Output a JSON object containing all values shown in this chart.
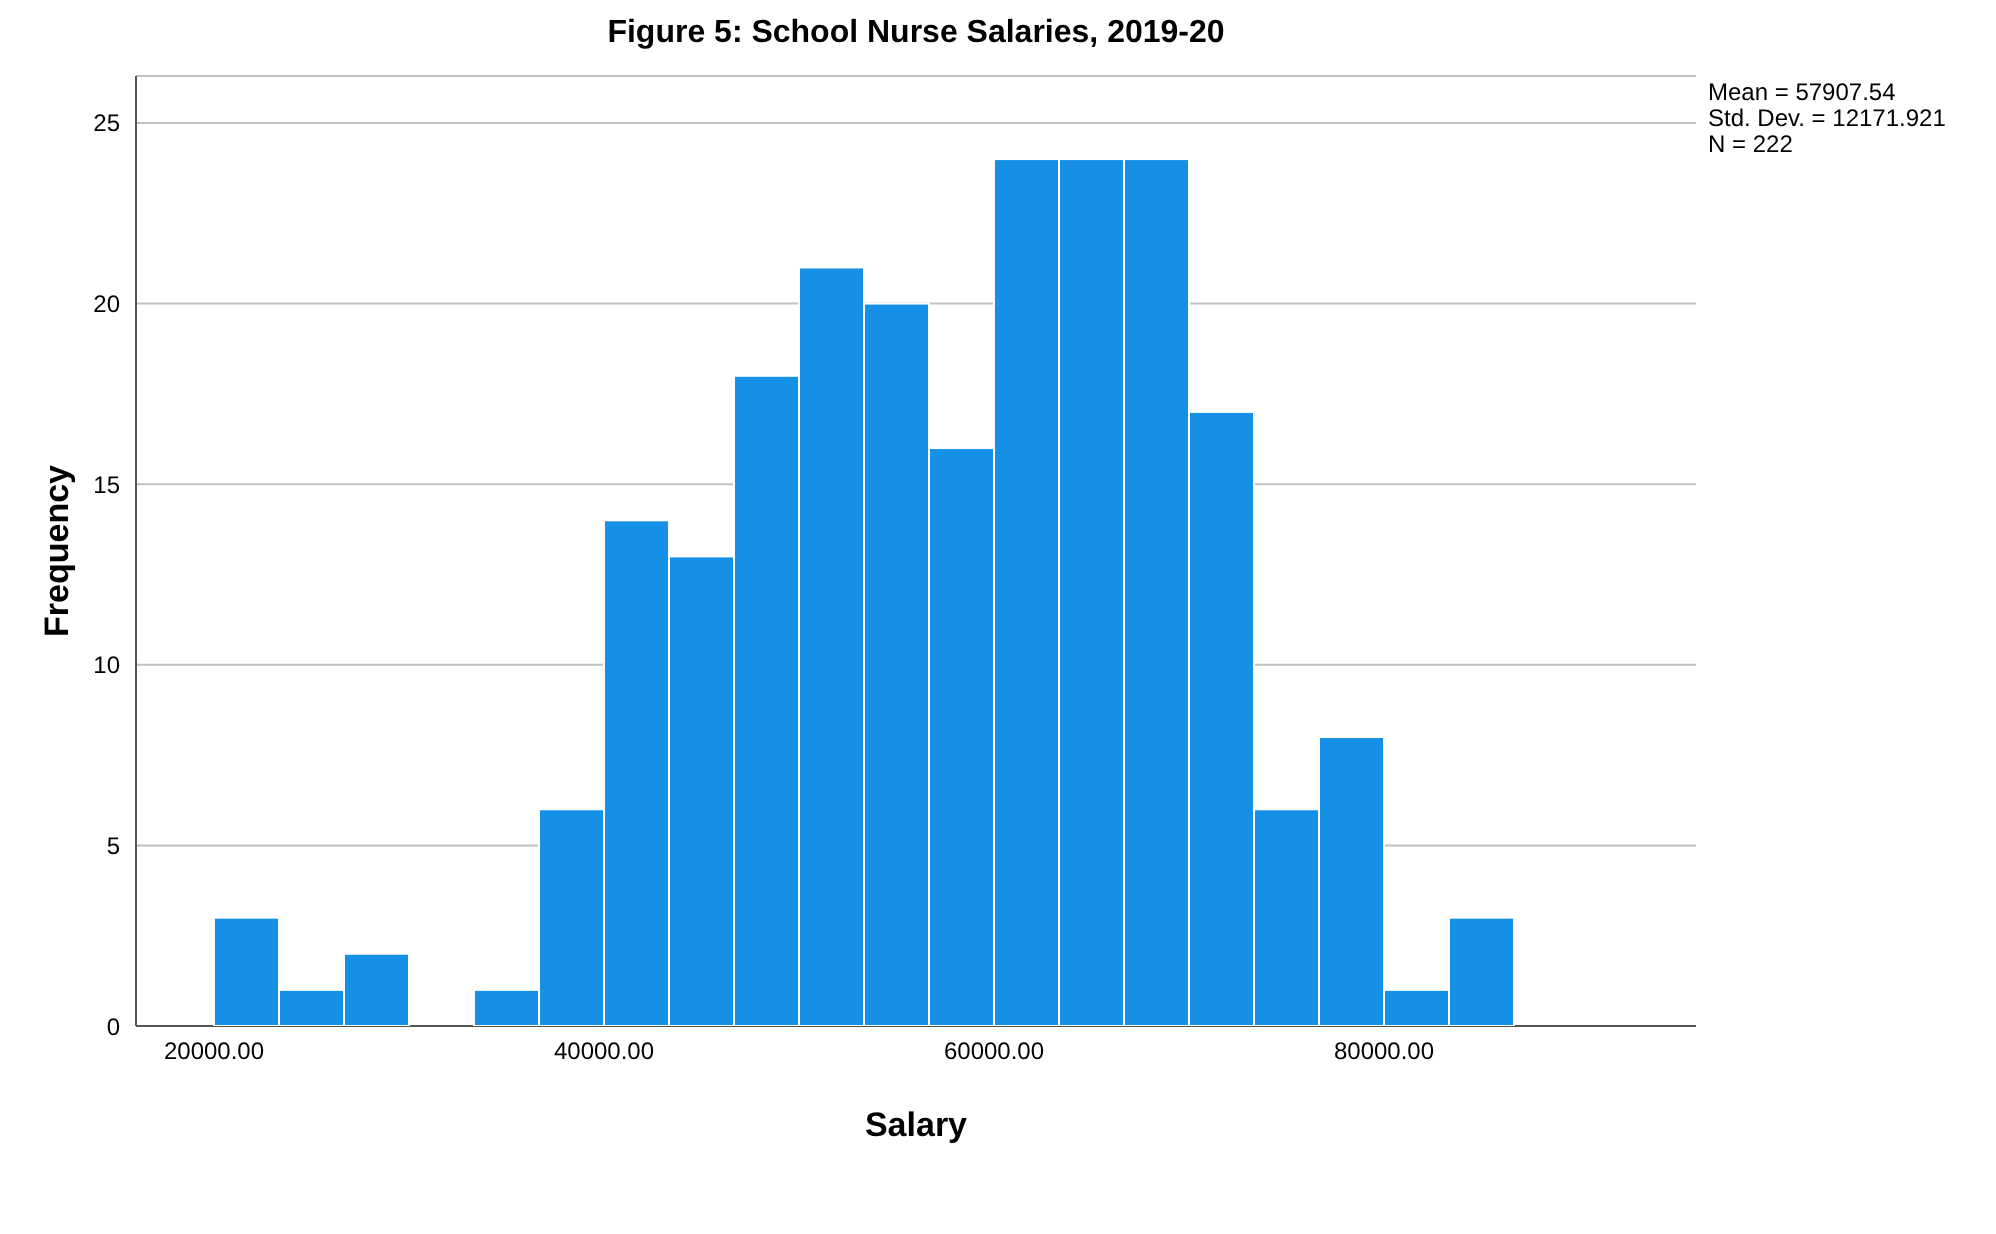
{
  "chart_data": {
    "type": "histogram",
    "title": "Figure 5: School Nurse Salaries, 2019-20",
    "xlabel": "Salary",
    "ylabel": "Frequency",
    "bins": [
      20000,
      23333,
      26667,
      30000,
      33333,
      36667,
      40000,
      43333,
      46667,
      50000,
      53333,
      56667,
      60000,
      63333,
      66667,
      70000,
      73333,
      76667,
      80000,
      83333,
      86667
    ],
    "values": [
      3,
      1,
      2,
      0,
      1,
      6,
      14,
      13,
      18,
      21,
      20,
      16,
      24,
      24,
      24,
      17,
      6,
      8,
      1,
      3
    ],
    "color": "#1490e6",
    "xlim": [
      16000,
      96000
    ],
    "xticks": [
      {
        "value": 20000,
        "label": "20000.00"
      },
      {
        "value": 40000,
        "label": "40000.00"
      },
      {
        "value": 60000,
        "label": "60000.00"
      },
      {
        "value": 80000,
        "label": "80000.00"
      }
    ],
    "ylim": [
      0,
      26.3
    ],
    "yticks": [
      0,
      5,
      10,
      15,
      20,
      25
    ],
    "grid": "y",
    "annotations": [
      "Mean = 57907.54",
      "Std. Dev. = 12171.921",
      "N = 222"
    ]
  }
}
